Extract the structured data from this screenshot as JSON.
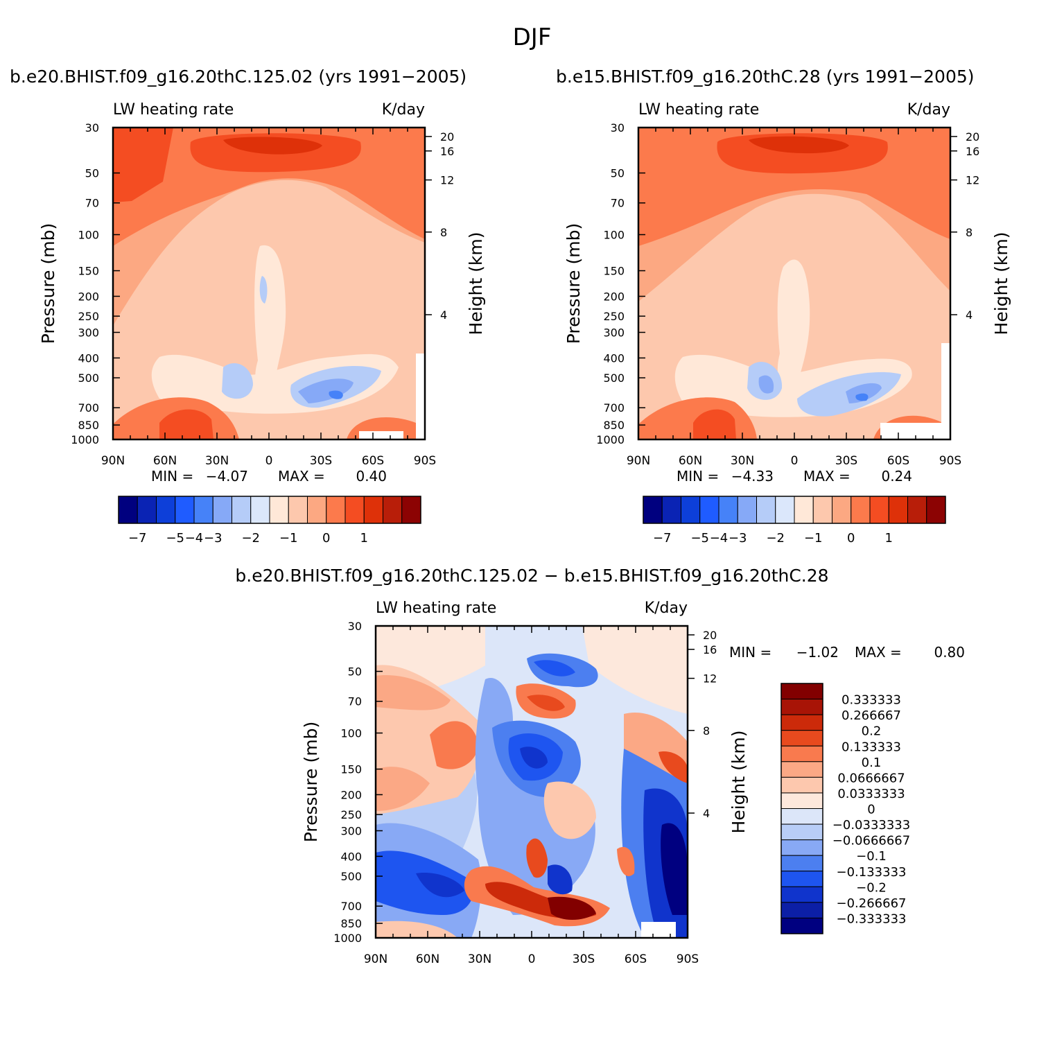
{
  "title": "DJF",
  "colors": {
    "levels_main": [
      "#00007f",
      "#0a23b4",
      "#0d3fd9",
      "#1f5cff",
      "#4682f8",
      "#86a9f7",
      "#b5ccf8",
      "#dbe7fb",
      "#ffe8d8",
      "#fdc8ad",
      "#fca882",
      "#fc7a4c",
      "#f44d22",
      "#de3109",
      "#b81e09",
      "#8c0303"
    ],
    "levels_diff": [
      "#000080",
      "#0c1fa6",
      "#1034cc",
      "#1e55f0",
      "#4c7ff0",
      "#88a9f5",
      "#b8cdf7",
      "#dce6f9",
      "#fde8dc",
      "#fdc8ae",
      "#fba885",
      "#f97a4e",
      "#e84a1e",
      "#cc2a0a",
      "#a81406",
      "#820000"
    ]
  },
  "chart_data": [
    {
      "type": "heatmap",
      "name": "model-a",
      "title": "b.e20.BHIST.f09_g16.20thC.125.02 (yrs 1991−2005)",
      "subtitle_left": "LW heating rate",
      "subtitle_right": "K/day",
      "xlabel": "",
      "ylabel": "Pressure (mb)",
      "ylabel_right": "Height (km)",
      "x_ticks": [
        "90N",
        "60N",
        "30N",
        "0",
        "30S",
        "60S",
        "90S"
      ],
      "y_ticks": [
        "30",
        "50",
        "70",
        "100",
        "150",
        "200",
        "250",
        "300",
        "400",
        "500",
        "700",
        "850",
        "1000"
      ],
      "y_ticks_right": [
        "20",
        "16",
        "12",
        "8",
        "4"
      ],
      "min_label": "MIN =",
      "min_value": "−4.07",
      "max_label": "MAX =",
      "max_value": "0.40",
      "colorbar_labels": [
        "−7",
        "−5",
        "−4",
        "−3",
        "−2",
        "−1",
        "0",
        "1"
      ]
    },
    {
      "type": "heatmap",
      "name": "model-b",
      "title": "b.e15.BHIST.f09_g16.20thC.28 (yrs 1991−2005)",
      "subtitle_left": "LW heating rate",
      "subtitle_right": "K/day",
      "xlabel": "",
      "ylabel": "Pressure (mb)",
      "ylabel_right": "Height (km)",
      "x_ticks": [
        "90N",
        "60N",
        "30N",
        "0",
        "30S",
        "60S",
        "90S"
      ],
      "y_ticks": [
        "30",
        "50",
        "70",
        "100",
        "150",
        "200",
        "250",
        "300",
        "400",
        "500",
        "700",
        "850",
        "1000"
      ],
      "y_ticks_right": [
        "20",
        "16",
        "12",
        "8",
        "4"
      ],
      "min_label": "MIN =",
      "min_value": "−4.33",
      "max_label": "MAX =",
      "max_value": "0.24",
      "colorbar_labels": [
        "−7",
        "−5",
        "−4",
        "−3",
        "−2",
        "−1",
        "0",
        "1"
      ]
    },
    {
      "type": "heatmap",
      "name": "difference",
      "title": "b.e20.BHIST.f09_g16.20thC.125.02 − b.e15.BHIST.f09_g16.20thC.28",
      "subtitle_left": "LW heating rate",
      "subtitle_right": "K/day",
      "xlabel": "",
      "ylabel": "Pressure (mb)",
      "ylabel_right": "Height (km)",
      "x_ticks": [
        "90N",
        "60N",
        "30N",
        "0",
        "30S",
        "60S",
        "90S"
      ],
      "y_ticks": [
        "30",
        "50",
        "70",
        "100",
        "150",
        "200",
        "250",
        "300",
        "400",
        "500",
        "700",
        "850",
        "1000"
      ],
      "y_ticks_right": [
        "20",
        "16",
        "12",
        "8",
        "4"
      ],
      "min_label": "MIN =",
      "min_value": "−1.02",
      "max_label": "MAX =",
      "max_value": "0.80",
      "colorbar_labels": [
        "0.333333",
        "0.266667",
        "0.2",
        "0.133333",
        "0.1",
        "0.0666667",
        "0.0333333",
        "0",
        "−0.0333333",
        "−0.0666667",
        "−0.1",
        "−0.133333",
        "−0.2",
        "−0.266667",
        "−0.333333"
      ]
    }
  ]
}
